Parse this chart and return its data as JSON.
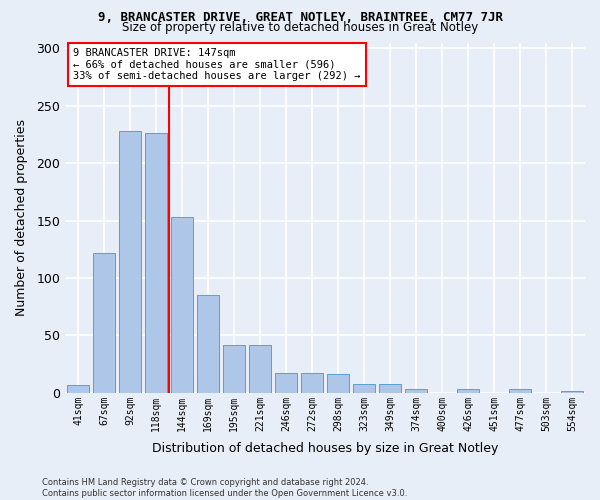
{
  "title": "9, BRANCASTER DRIVE, GREAT NOTLEY, BRAINTREE, CM77 7JR",
  "subtitle": "Size of property relative to detached houses in Great Notley",
  "xlabel": "Distribution of detached houses by size in Great Notley",
  "ylabel": "Number of detached properties",
  "bar_values": [
    7,
    122,
    228,
    226,
    153,
    85,
    42,
    42,
    17,
    17,
    16,
    8,
    8,
    3,
    0,
    3,
    0,
    3,
    0,
    2
  ],
  "categories": [
    "41sqm",
    "67sqm",
    "92sqm",
    "118sqm",
    "144sqm",
    "169sqm",
    "195sqm",
    "221sqm",
    "246sqm",
    "272sqm",
    "298sqm",
    "323sqm",
    "349sqm",
    "374sqm",
    "400sqm",
    "426sqm",
    "451sqm",
    "477sqm",
    "503sqm",
    "554sqm"
  ],
  "bar_color": "#aec6e8",
  "bar_edge_color": "#5a9fd4",
  "vline_x_index": 4,
  "annotation_text": "9 BRANCASTER DRIVE: 147sqm\n← 66% of detached houses are smaller (596)\n33% of semi-detached houses are larger (292) →",
  "annotation_box_color": "white",
  "annotation_box_edge_color": "red",
  "vline_color": "red",
  "ylim": [
    0,
    305
  ],
  "background_color": "#e8eef7",
  "grid_color": "white",
  "footer_text": "Contains HM Land Registry data © Crown copyright and database right 2024.\nContains public sector information licensed under the Open Government Licence v3.0."
}
